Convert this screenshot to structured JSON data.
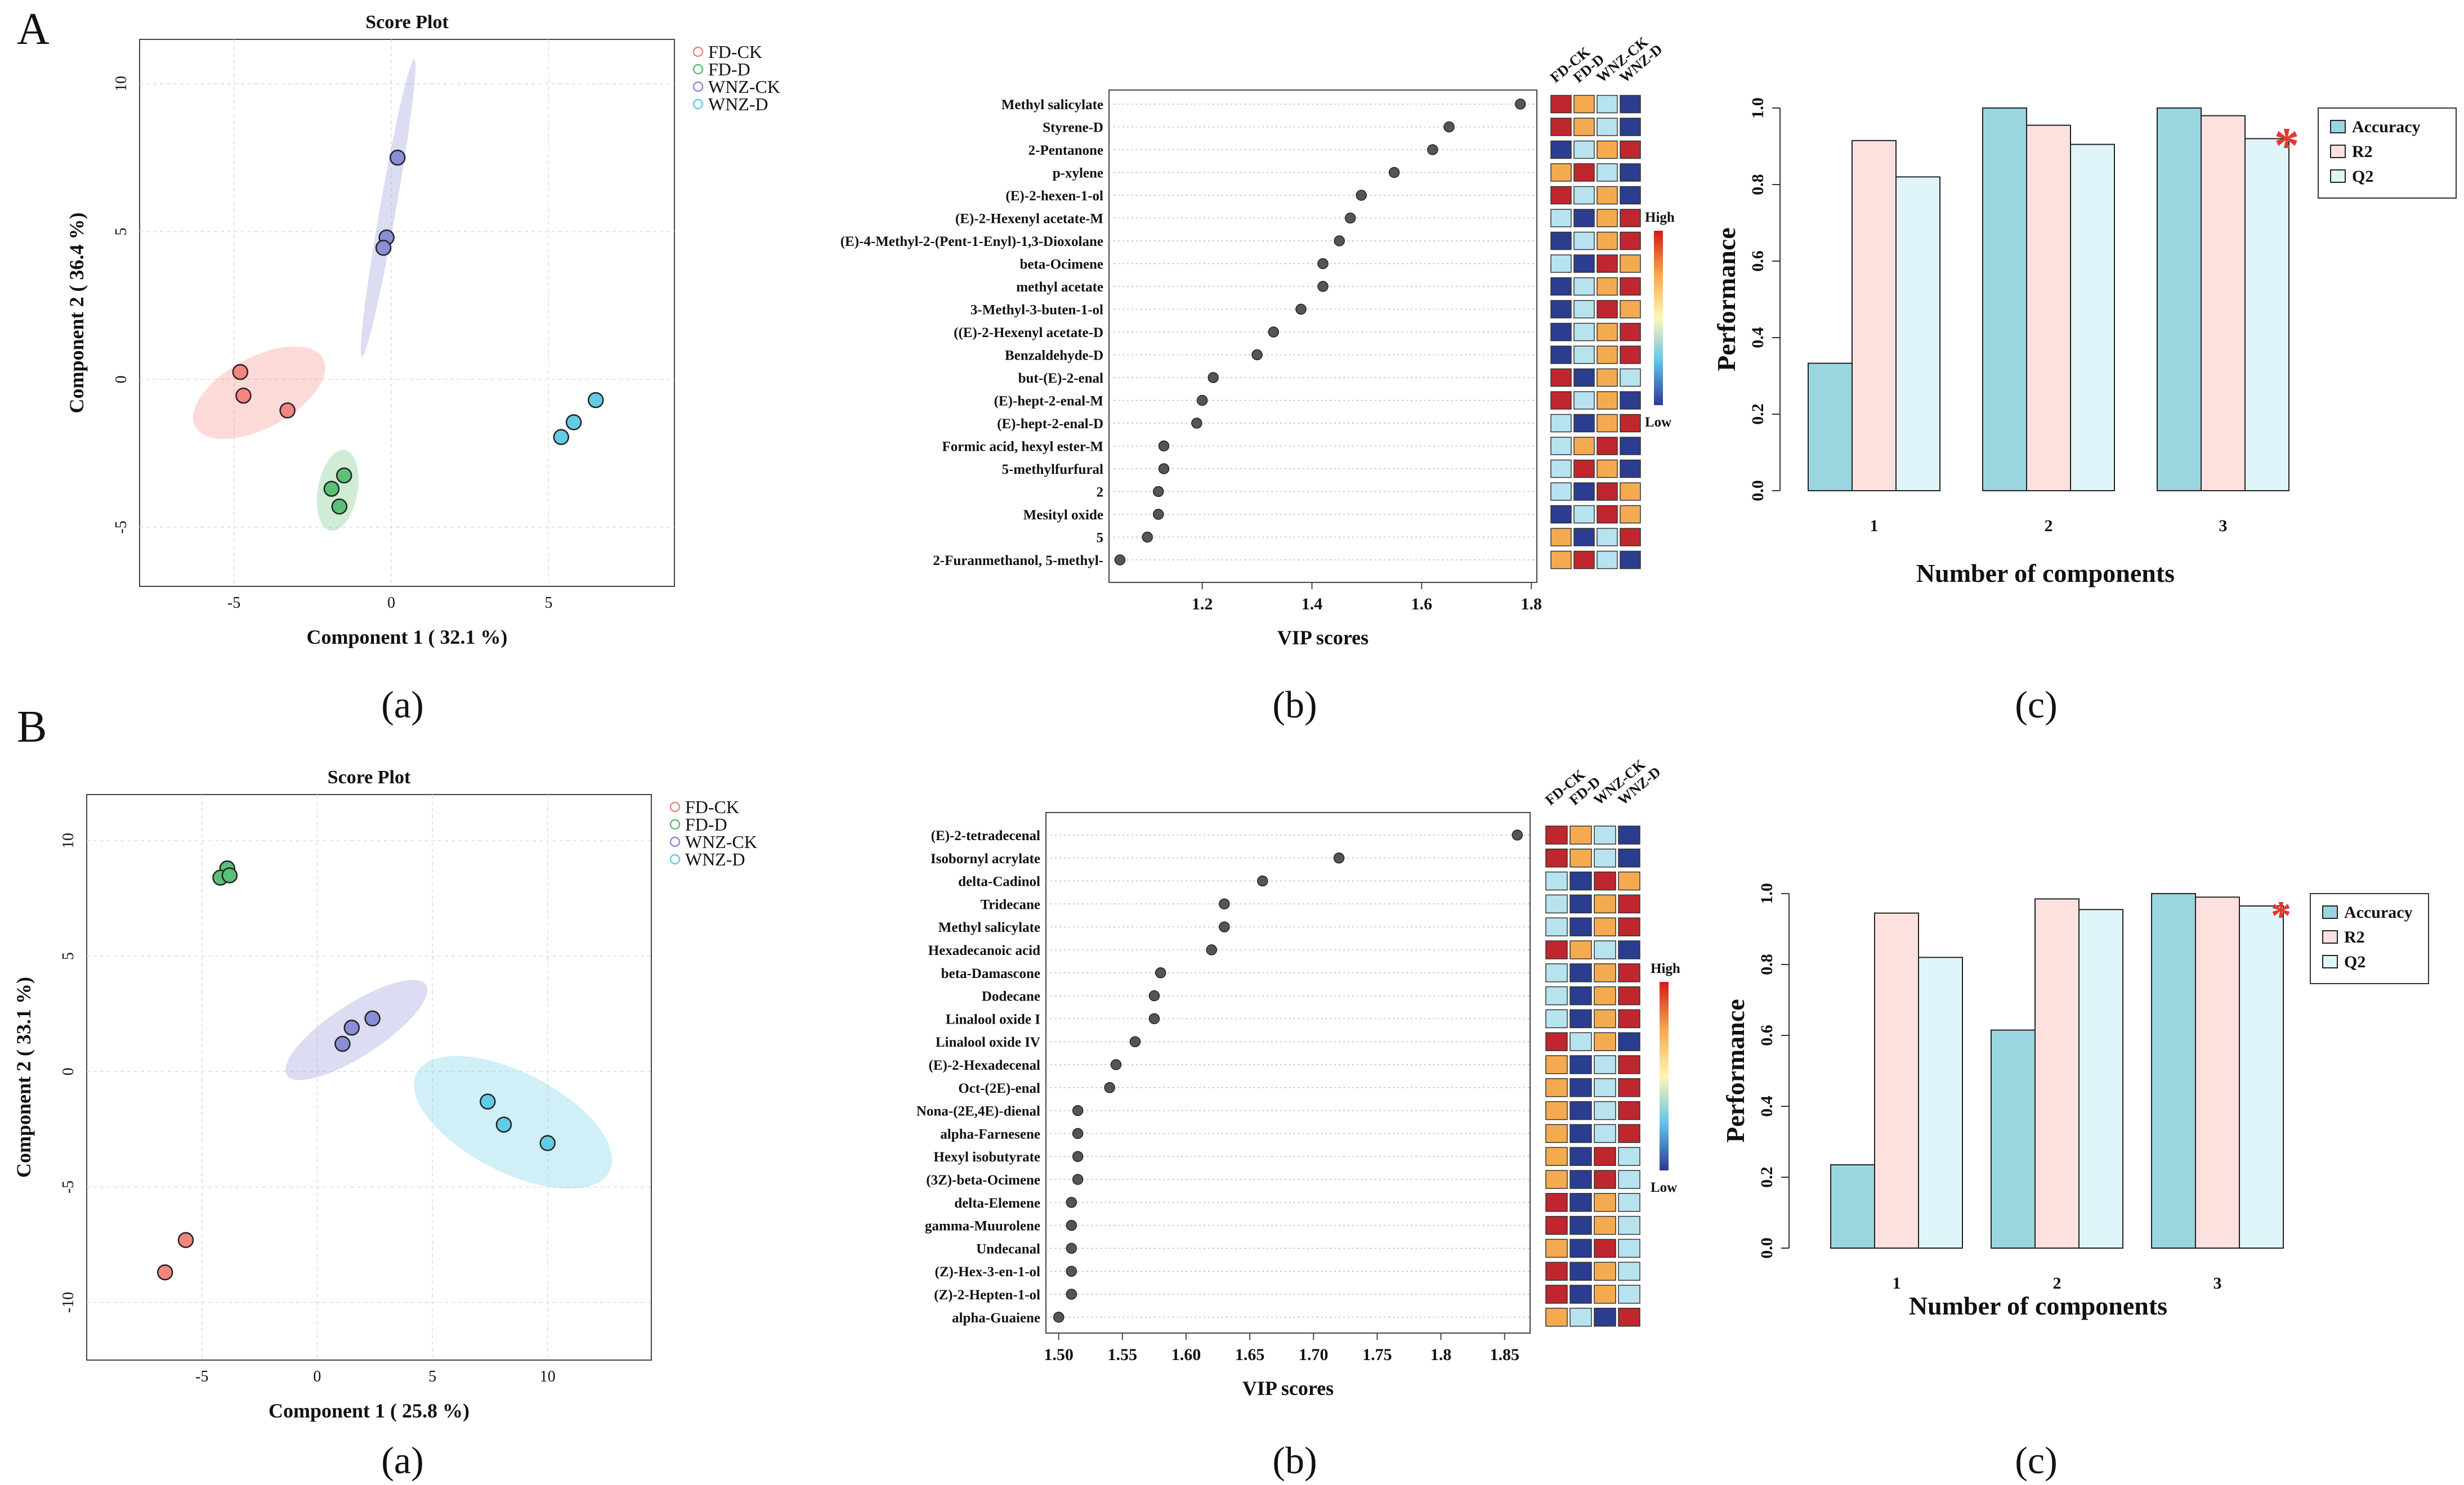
{
  "colors": {
    "FD-CK": "#f4857f",
    "FD-D": "#5cbf77",
    "WNZ-CK": "#8a8ed6",
    "WNZ-D": "#63cbe6",
    "heatmap": [
      "#c0262d",
      "#f4ab50",
      "#b7e3ef",
      "#2a3d8f"
    ],
    "accuracy": "#9ad6e0",
    "r2": "#fde1df",
    "q2": "#dff5f9",
    "star": "#e03a2f"
  },
  "captions": {
    "a": "(a)",
    "b": "(b)",
    "c": "(c)"
  },
  "panel_letters": {
    "A": "A",
    "B": "B"
  },
  "chart_data": [
    {
      "type": "scatter",
      "panel": "A(a)",
      "title": "Score Plot",
      "xlabel": "Component 1 ( 32.1 %)",
      "ylabel": "Component 2 ( 36.4 %)",
      "xlim": [
        -8,
        9
      ],
      "ylim": [
        -7,
        11.5
      ],
      "xticks": [
        -5,
        0,
        5
      ],
      "yticks": [
        -5,
        0,
        5,
        10
      ],
      "legend_position": "top-right",
      "series": [
        {
          "name": "FD-CK",
          "points": [
            [
              -4.8,
              0.25
            ],
            [
              -4.7,
              -0.55
            ],
            [
              -3.3,
              -1.05
            ]
          ],
          "ellipse": {
            "cx": -4.2,
            "cy": -0.45,
            "rx": 2.3,
            "ry": 0.75,
            "angle": -28
          }
        },
        {
          "name": "FD-D",
          "points": [
            [
              -1.5,
              -3.25
            ],
            [
              -1.9,
              -3.7
            ],
            [
              -1.65,
              -4.3
            ]
          ],
          "ellipse": {
            "cx": -1.7,
            "cy": -3.75,
            "rx": 1.3,
            "ry": 0.42,
            "angle": -80
          }
        },
        {
          "name": "WNZ-CK",
          "points": [
            [
              0.2,
              7.5
            ],
            [
              -0.15,
              4.8
            ],
            [
              -0.25,
              4.45
            ]
          ],
          "ellipse": {
            "cx": -0.1,
            "cy": 5.8,
            "rx": 4.8,
            "ry": 0.17,
            "angle": -80
          }
        },
        {
          "name": "WNZ-D",
          "points": [
            [
              6.5,
              -0.7
            ],
            [
              5.8,
              -1.45
            ],
            [
              5.4,
              -1.95
            ]
          ],
          "ellipse": null
        }
      ]
    },
    {
      "type": "dot",
      "panel": "A(b)",
      "xlabel": "VIP scores",
      "xlim": [
        1.03,
        1.81
      ],
      "xticks": [
        1.2,
        1.4,
        1.6,
        1.8
      ],
      "heat_columns": [
        "FD-CK",
        "FD-D",
        "WNZ-CK",
        "WNZ-D"
      ],
      "heat_legend": {
        "high": "High",
        "low": "Low"
      },
      "compounds": [
        "Methyl salicylate",
        "Styrene-D",
        "2-Pentanone",
        "p-xylene",
        "(E)-2-hexen-1-ol",
        "(E)-2-Hexenyl acetate-M",
        "(E)-4-Methyl-2-(Pent-1-Enyl)-1,3-Dioxolane",
        "beta-Ocimene",
        "methyl acetate",
        "3-Methyl-3-buten-1-ol",
        "((E)-2-Hexenyl acetate-D",
        "Benzaldehyde-D",
        "but-(E)-2-enal",
        "(E)-hept-2-enal-M",
        "(E)-hept-2-enal-D",
        "Formic acid, hexyl ester-M",
        "5-methylfurfural",
        "2",
        "Mesityl oxide",
        "5",
        "2-Furanmethanol, 5-methyl-"
      ],
      "values": [
        1.78,
        1.65,
        1.62,
        1.55,
        1.49,
        1.47,
        1.45,
        1.42,
        1.42,
        1.38,
        1.33,
        1.3,
        1.22,
        1.2,
        1.19,
        1.13,
        1.13,
        1.12,
        1.12,
        1.1,
        1.05
      ],
      "heat": [
        [
          0,
          1,
          2,
          3
        ],
        [
          0,
          1,
          2,
          3
        ],
        [
          3,
          2,
          1,
          0
        ],
        [
          1,
          0,
          2,
          3
        ],
        [
          0,
          2,
          1,
          3
        ],
        [
          2,
          3,
          1,
          0
        ],
        [
          3,
          2,
          1,
          0
        ],
        [
          2,
          3,
          0,
          1
        ],
        [
          3,
          2,
          1,
          0
        ],
        [
          3,
          2,
          0,
          1
        ],
        [
          3,
          2,
          1,
          0
        ],
        [
          3,
          2,
          1,
          0
        ],
        [
          0,
          3,
          1,
          2
        ],
        [
          0,
          2,
          1,
          3
        ],
        [
          2,
          3,
          1,
          0
        ],
        [
          2,
          1,
          0,
          3
        ],
        [
          2,
          0,
          1,
          3
        ],
        [
          2,
          3,
          0,
          1
        ],
        [
          3,
          2,
          0,
          1
        ],
        [
          1,
          3,
          2,
          0
        ],
        [
          1,
          0,
          2,
          3
        ]
      ]
    },
    {
      "type": "bar",
      "panel": "A(c)",
      "xlabel": "Number of components",
      "ylabel": "Performance",
      "categories": [
        "1",
        "2",
        "3"
      ],
      "ylim": [
        0,
        1
      ],
      "yticks": [
        "0.0",
        "0.2",
        "0.4",
        "0.6",
        "0.8",
        "1.0"
      ],
      "legend_position": "top-right",
      "series": [
        {
          "name": "Accuracy",
          "values": [
            0.333,
            1.0,
            1.0
          ]
        },
        {
          "name": "R2",
          "values": [
            0.915,
            0.955,
            0.98
          ]
        },
        {
          "name": "Q2",
          "values": [
            0.82,
            0.905,
            0.92
          ]
        }
      ],
      "annotation": {
        "text": "*",
        "category": "3",
        "series": "Q2"
      }
    },
    {
      "type": "scatter",
      "panel": "B(a)",
      "title": "Score Plot",
      "xlabel": "Component 1 ( 25.8 %)",
      "ylabel": "Component 2 ( 33.1 %)",
      "xlim": [
        -10,
        14.5
      ],
      "ylim": [
        -12.5,
        12
      ],
      "xticks": [
        -5,
        0,
        5,
        10
      ],
      "yticks": [
        -10,
        -5,
        0,
        5,
        10
      ],
      "legend_position": "top-right",
      "series": [
        {
          "name": "FD-CK",
          "points": [
            [
              -5.7,
              -7.3
            ],
            [
              -6.6,
              -8.7
            ]
          ],
          "ellipse": null
        },
        {
          "name": "FD-D",
          "points": [
            [
              -3.9,
              8.8
            ],
            [
              -4.2,
              8.4
            ],
            [
              -3.8,
              8.5
            ]
          ],
          "ellipse": null
        },
        {
          "name": "WNZ-CK",
          "points": [
            [
              2.4,
              2.3
            ],
            [
              1.5,
              1.9
            ],
            [
              1.1,
              1.2
            ]
          ],
          "ellipse": {
            "cx": 1.7,
            "cy": 1.8,
            "rx": 3.6,
            "ry": 0.7,
            "angle": -33
          }
        },
        {
          "name": "WNZ-D",
          "points": [
            [
              7.4,
              -1.3
            ],
            [
              8.1,
              -2.3
            ],
            [
              10.0,
              -3.1
            ]
          ],
          "ellipse": {
            "cx": 8.5,
            "cy": -2.2,
            "rx": 4.7,
            "ry": 1.35,
            "angle": 27
          }
        }
      ]
    },
    {
      "type": "dot",
      "panel": "B(b)",
      "xlabel": "VIP scores",
      "xlim": [
        1.49,
        1.87
      ],
      "xticks": [
        1.5,
        1.55,
        1.6,
        1.65,
        1.7,
        1.75,
        1.8,
        1.85
      ],
      "tick_labels": [
        "1.50",
        "1.55",
        "1.60",
        "1.65",
        "1.70",
        "1.75",
        "1.8",
        "1.85"
      ],
      "heat_columns": [
        "FD-CK",
        "FD-D",
        "WNZ-CK",
        "WNZ-D"
      ],
      "heat_legend": {
        "high": "High",
        "low": "Low"
      },
      "compounds": [
        "(E)-2-tetradecenal",
        "Isobornyl acrylate",
        "delta-Cadinol",
        "Tridecane",
        "Methyl salicylate",
        "Hexadecanoic acid",
        "beta-Damascone",
        "Dodecane",
        "Linalool oxide I",
        "Linalool oxide IV",
        "(E)-2-Hexadecenal",
        "Oct-(2E)-enal",
        "Nona-(2E,4E)-dienal",
        "alpha-Farnesene",
        "Hexyl isobutyrate",
        "(3Z)-beta-Ocimene",
        "delta-Elemene",
        "gamma-Muurolene",
        "Undecanal",
        "(Z)-Hex-3-en-1-ol",
        "(Z)-2-Hepten-1-ol",
        "alpha-Guaiene"
      ],
      "values": [
        1.86,
        1.72,
        1.66,
        1.63,
        1.63,
        1.62,
        1.58,
        1.575,
        1.575,
        1.56,
        1.545,
        1.54,
        1.515,
        1.515,
        1.515,
        1.515,
        1.51,
        1.51,
        1.51,
        1.51,
        1.51,
        1.5
      ],
      "heat": [
        [
          0,
          1,
          2,
          3
        ],
        [
          0,
          1,
          2,
          3
        ],
        [
          2,
          3,
          0,
          1
        ],
        [
          2,
          3,
          1,
          0
        ],
        [
          2,
          3,
          1,
          0
        ],
        [
          0,
          1,
          2,
          3
        ],
        [
          2,
          3,
          1,
          0
        ],
        [
          2,
          3,
          1,
          0
        ],
        [
          2,
          3,
          1,
          0
        ],
        [
          0,
          2,
          1,
          3
        ],
        [
          1,
          3,
          2,
          0
        ],
        [
          1,
          3,
          2,
          0
        ],
        [
          1,
          3,
          2,
          0
        ],
        [
          1,
          3,
          2,
          0
        ],
        [
          1,
          3,
          0,
          2
        ],
        [
          1,
          3,
          0,
          2
        ],
        [
          0,
          3,
          1,
          2
        ],
        [
          0,
          3,
          1,
          2
        ],
        [
          1,
          3,
          0,
          2
        ],
        [
          0,
          3,
          1,
          2
        ],
        [
          0,
          3,
          1,
          2
        ],
        [
          1,
          2,
          3,
          0
        ]
      ]
    },
    {
      "type": "bar",
      "panel": "B(c)",
      "xlabel": "Number of components",
      "ylabel": "Performance",
      "categories": [
        "1",
        "2",
        "3"
      ],
      "ylim": [
        0,
        1
      ],
      "yticks": [
        "0.0",
        "0.2",
        "0.4",
        "0.6",
        "0.8",
        "1.0"
      ],
      "legend_position": "top-right",
      "series": [
        {
          "name": "Accuracy",
          "values": [
            0.235,
            0.615,
            1.0
          ]
        },
        {
          "name": "R2",
          "values": [
            0.945,
            0.985,
            0.99
          ]
        },
        {
          "name": "Q2",
          "values": [
            0.82,
            0.955,
            0.965
          ]
        }
      ],
      "annotation": {
        "text": "*",
        "category": "3",
        "series": "Q2"
      }
    }
  ]
}
